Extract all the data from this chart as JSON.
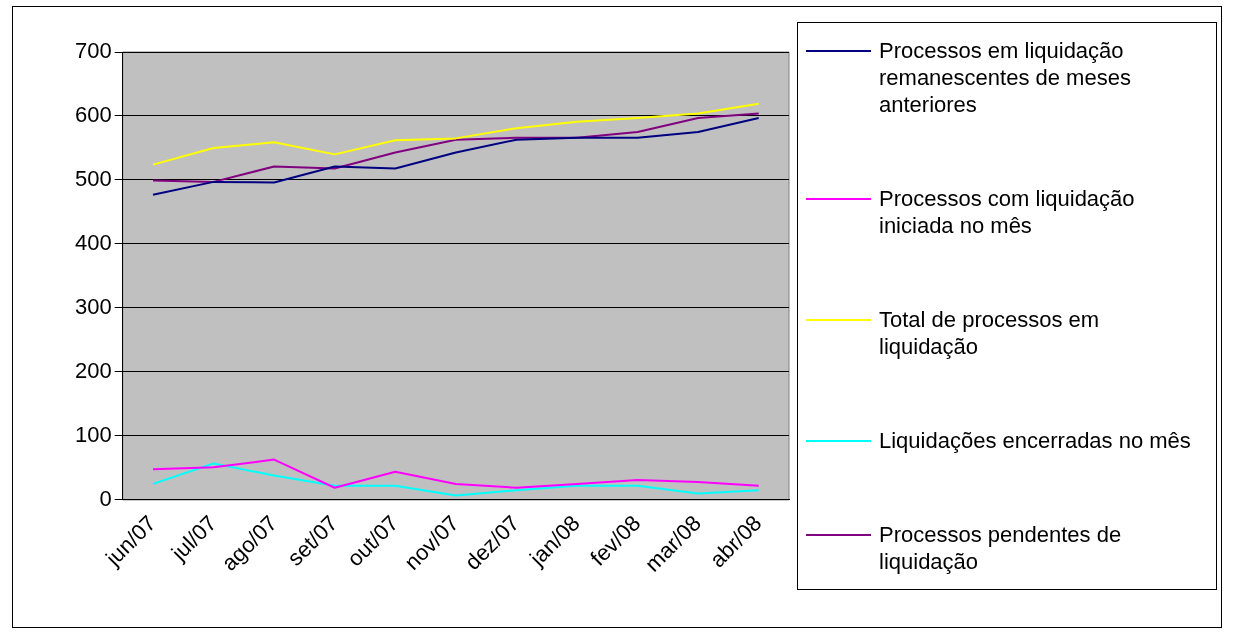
{
  "chart_data": {
    "type": "line",
    "categories": [
      "jun/07",
      "jul/07",
      "ago/07",
      "set/07",
      "out/07",
      "nov/07",
      "dez/07",
      "jan/08",
      "fev/08",
      "mar/08",
      "abr/08"
    ],
    "series": [
      {
        "name": "Processos em liquidação remanescentes de meses anteriores",
        "color": "#000080",
        "values": [
          477,
          497,
          496,
          521,
          518,
          543,
          563,
          566,
          566,
          575,
          597
        ]
      },
      {
        "name": "Processos com liquidação iniciada no mês",
        "color": "#ff00ff",
        "values": [
          48,
          51,
          63,
          19,
          44,
          25,
          19,
          25,
          31,
          28,
          22
        ]
      },
      {
        "name": "Total de processos em liquidação",
        "color": "#ffff00",
        "values": [
          524,
          550,
          559,
          540,
          562,
          565,
          581,
          591,
          597,
          604,
          619
        ]
      },
      {
        "name": "Liquidações encerradas no mês",
        "color": "#00ffff",
        "values": [
          25,
          57,
          38,
          22,
          22,
          7,
          15,
          22,
          22,
          10,
          15
        ]
      },
      {
        "name": "Processos pendentes de liquidação",
        "color": "#800080",
        "values": [
          499,
          497,
          521,
          518,
          543,
          563,
          566,
          566,
          575,
          597,
          604
        ]
      }
    ],
    "ylim": [
      0,
      700
    ],
    "yticks": [
      0,
      100,
      200,
      300,
      400,
      500,
      600,
      700
    ],
    "grid": "y",
    "legend": "right",
    "marker": "none",
    "line_style": "solid"
  }
}
